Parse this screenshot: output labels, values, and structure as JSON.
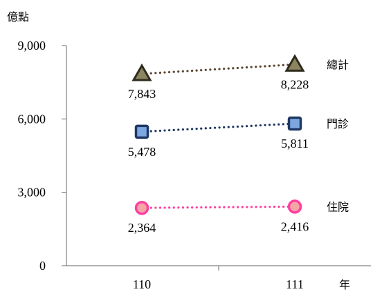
{
  "chart_data": {
    "type": "line",
    "ylabel": "億點",
    "xlabel": "年",
    "categories": [
      "110",
      "111"
    ],
    "ylim": [
      0,
      9000
    ],
    "yticks": [
      "0",
      "3,000",
      "6,000",
      "9,000"
    ],
    "grid": false,
    "series": [
      {
        "name": "總計",
        "values": [
          7843,
          8228
        ],
        "value_labels": [
          "7,843",
          "8,228"
        ],
        "color": "#5a4632",
        "marker_fill": "#8b8560",
        "marker_stroke": "#2f2b1e",
        "marker": "triangle"
      },
      {
        "name": "門診",
        "values": [
          5478,
          5811
        ],
        "value_labels": [
          "5,478",
          "5,811"
        ],
        "color": "#1f3864",
        "marker_fill": "#7da7e0",
        "marker_stroke": "#1f3864",
        "marker": "square"
      },
      {
        "name": "住院",
        "values": [
          2364,
          2416
        ],
        "value_labels": [
          "2,364",
          "2,416"
        ],
        "color": "#ff3fa0",
        "marker_fill": "#f4a6a6",
        "marker_stroke": "#ff3fa0",
        "marker": "circle"
      }
    ]
  }
}
